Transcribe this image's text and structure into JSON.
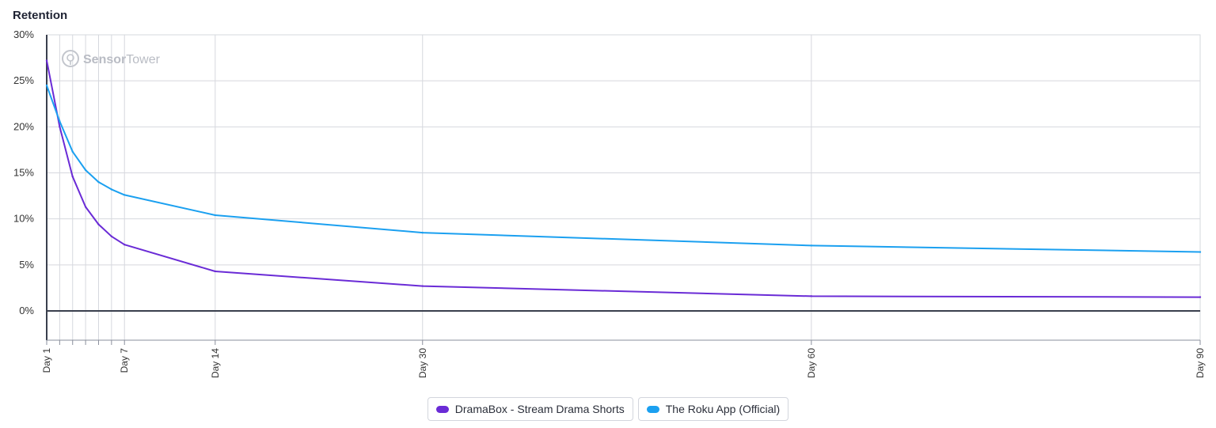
{
  "title": "Retention",
  "watermark": {
    "brand_bold": "Sensor",
    "brand_light": "Tower"
  },
  "colors": {
    "DramaBox": "#6a2bd6",
    "Roku": "#1ba0f0",
    "grid": "#d6d8de",
    "axis": "#3a3f4d"
  },
  "chart_data": {
    "type": "line",
    "ylabel": "",
    "xlabel": "",
    "ylim": [
      -4,
      30
    ],
    "yticks": [
      0,
      5,
      10,
      15,
      20,
      25,
      30
    ],
    "ytick_labels": [
      "0%",
      "5%",
      "10%",
      "15%",
      "20%",
      "25%",
      "30%"
    ],
    "xlim": [
      1,
      90
    ],
    "xticks": [
      1,
      2,
      3,
      4,
      5,
      6,
      7,
      14,
      30,
      60,
      90
    ],
    "xtick_labels": [
      "Day 1",
      "",
      "",
      "",
      "",
      "",
      "Day 7",
      "Day 14",
      "Day 30",
      "Day 60",
      "Day 90"
    ],
    "x": [
      1,
      2,
      3,
      4,
      5,
      6,
      7,
      14,
      30,
      60,
      90
    ],
    "series": [
      {
        "name": "DramaBox - Stream Drama Shorts",
        "color": "#6a2bd6",
        "values": [
          27.2,
          20.0,
          14.6,
          11.3,
          9.4,
          8.1,
          7.2,
          4.3,
          2.7,
          1.6,
          1.5
        ]
      },
      {
        "name": "The Roku App (Official)",
        "color": "#1ba0f0",
        "values": [
          24.5,
          20.6,
          17.3,
          15.3,
          14.0,
          13.2,
          12.6,
          10.4,
          8.5,
          7.1,
          6.4
        ]
      }
    ],
    "grid": true,
    "legend": "bottom-center"
  }
}
